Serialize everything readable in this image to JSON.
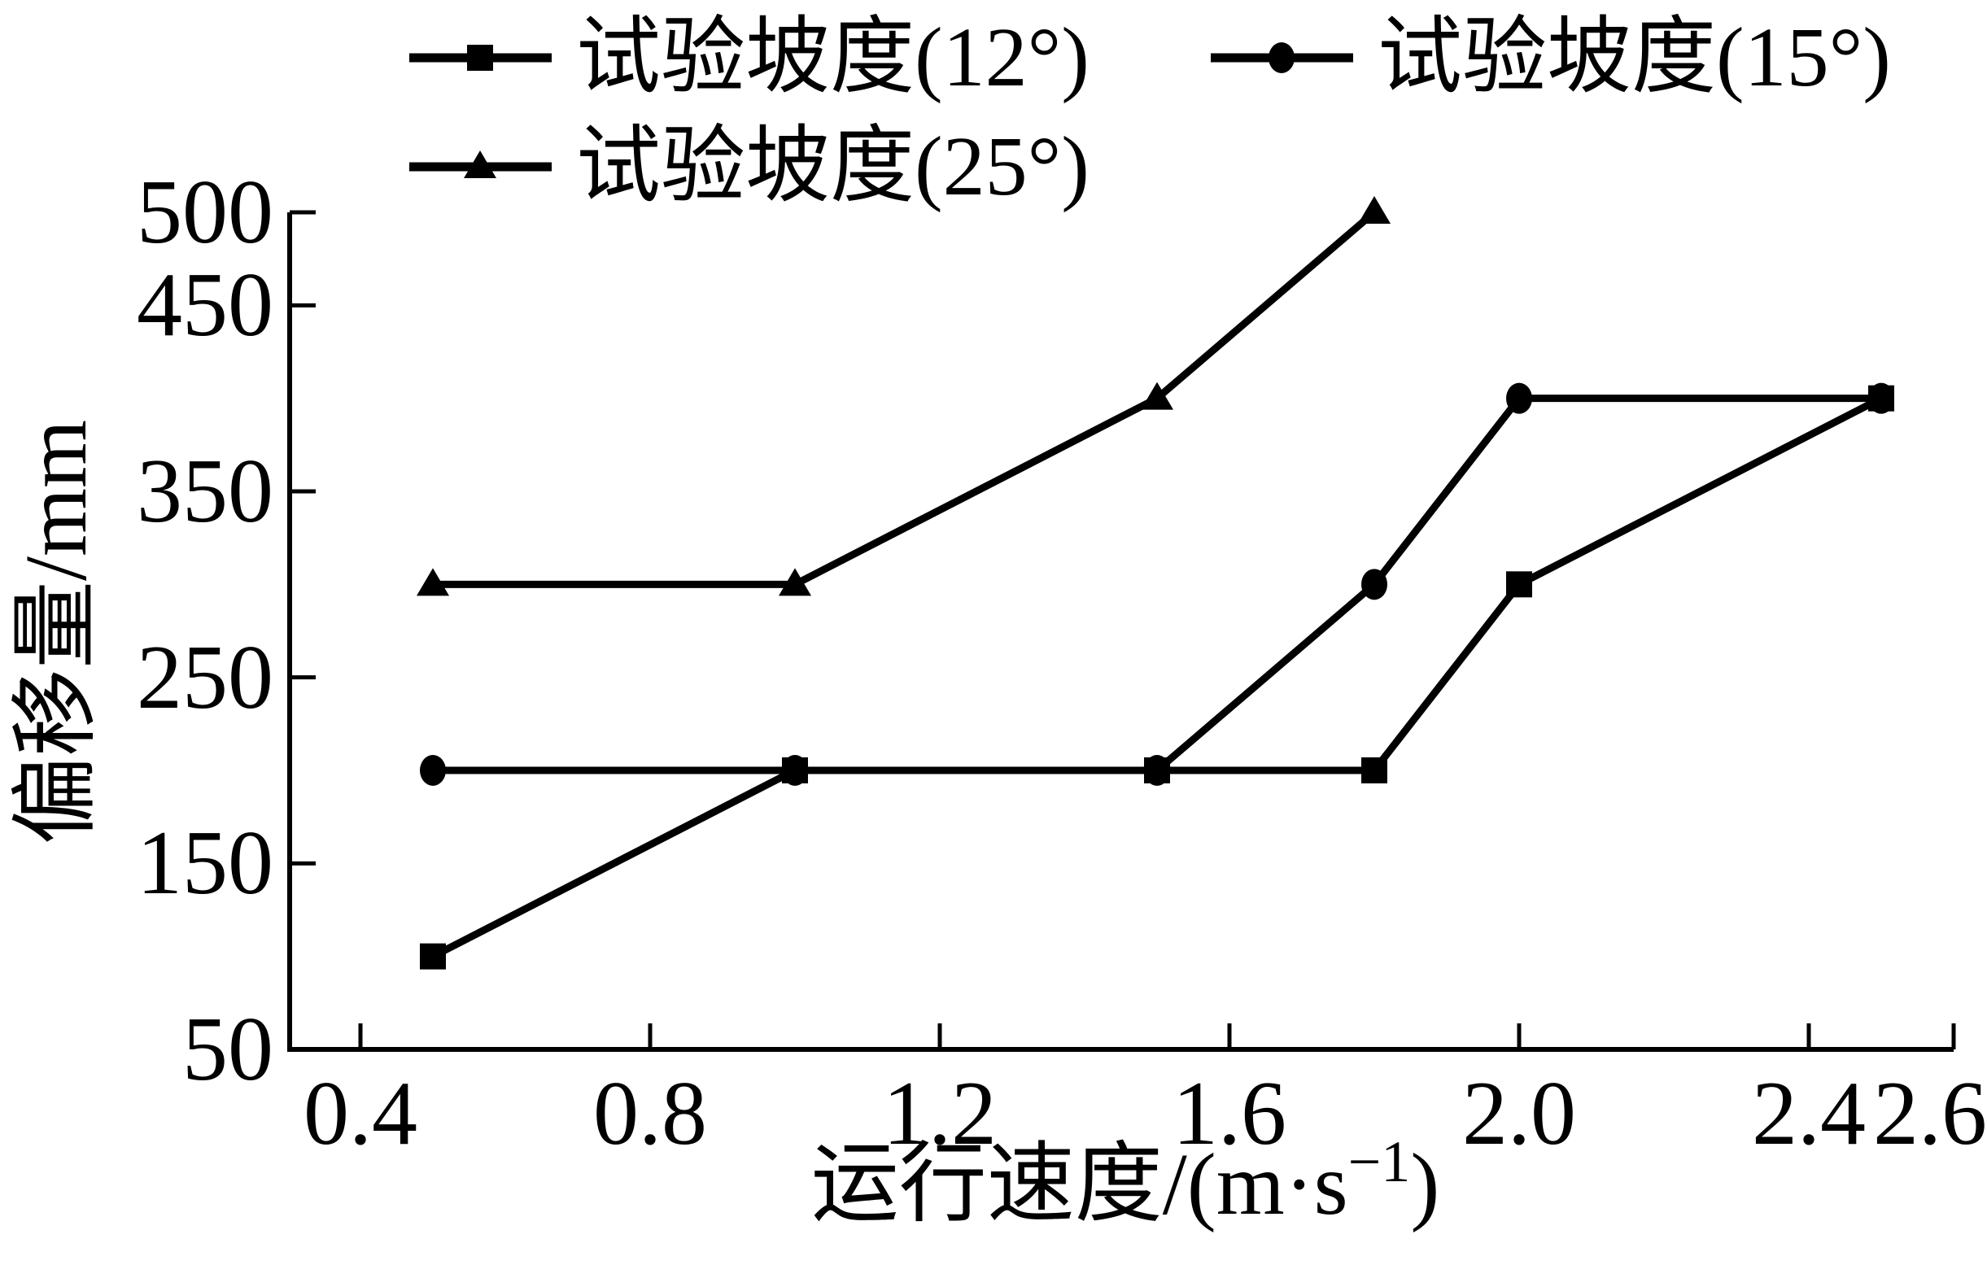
{
  "figure": {
    "background_color": "#ffffff",
    "ink_color": "#000000"
  },
  "chart_data": {
    "type": "line",
    "title": "",
    "xlabel": {
      "full": "运行速度/(m·s⁻¹)",
      "main": "运行速度/(m·s",
      "sup": "−1",
      "close": ")"
    },
    "ylabel": "偏移量/mm",
    "xlim": [
      0.3,
      2.6
    ],
    "ylim": [
      50,
      500
    ],
    "x_ticks": [
      0.4,
      0.8,
      1.2,
      1.6,
      2.0,
      2.4,
      2.6
    ],
    "x_tick_labels": [
      "0.4",
      "0.8",
      "1.2",
      "1.6",
      "2.0",
      "2.4",
      "2.6"
    ],
    "y_ticks": [
      50,
      150,
      250,
      350,
      450,
      500
    ],
    "y_tick_labels": [
      "50",
      "150",
      "250",
      "350",
      "450",
      "500"
    ],
    "grid": false,
    "legend_position": "top-left, two rows",
    "line_color": "#000000",
    "series": [
      {
        "name": "试验坡度(12°)",
        "marker": "square",
        "color": "#000000",
        "points": [
          [
            0.5,
            100
          ],
          [
            1.0,
            200
          ],
          [
            1.5,
            200
          ],
          [
            1.8,
            200
          ],
          [
            2.0,
            300
          ],
          [
            2.5,
            400
          ]
        ]
      },
      {
        "name": "试验坡度(15°)",
        "marker": "circle",
        "color": "#000000",
        "points": [
          [
            0.5,
            200
          ],
          [
            1.0,
            200
          ],
          [
            1.5,
            200
          ],
          [
            1.8,
            300
          ],
          [
            2.0,
            400
          ],
          [
            2.5,
            400
          ]
        ]
      },
      {
        "name": "试验坡度(25°)",
        "marker": "triangle",
        "color": "#000000",
        "points": [
          [
            0.5,
            300
          ],
          [
            1.0,
            300
          ],
          [
            1.5,
            400
          ],
          [
            1.8,
            500
          ]
        ]
      }
    ]
  }
}
